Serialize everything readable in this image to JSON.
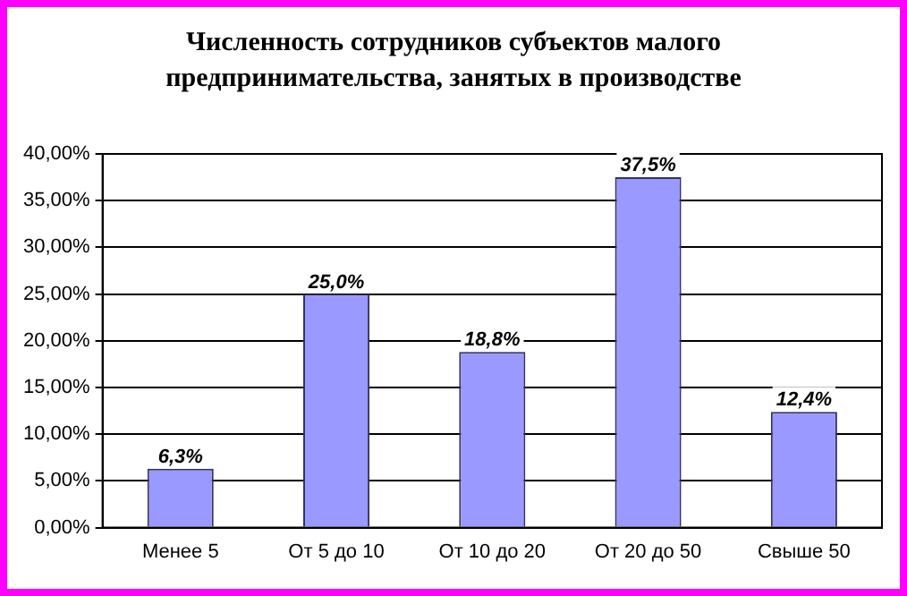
{
  "chart_data": {
    "type": "bar",
    "title": "Численность сотрудников субъектов малого предпринимательства, занятых в производстве",
    "categories": [
      "Менее 5",
      "От 5 до 10",
      "От 10 до 20",
      "От 20 до 50",
      "Свыше 50"
    ],
    "values": [
      6.3,
      25.0,
      18.8,
      37.5,
      12.4
    ],
    "value_labels": [
      "6,3%",
      "25,0%",
      "18,8%",
      "37,5%",
      "12,4%"
    ],
    "color": "#9999ff",
    "ylim": [
      0,
      40
    ],
    "yticks": [
      {
        "value": 0,
        "label": "0,00%"
      },
      {
        "value": 5,
        "label": "5,00%"
      },
      {
        "value": 10,
        "label": "10,00%"
      },
      {
        "value": 15,
        "label": "15,00%"
      },
      {
        "value": 20,
        "label": "20,00%"
      },
      {
        "value": 25,
        "label": "25,00%"
      },
      {
        "value": 30,
        "label": "30,00%"
      },
      {
        "value": 35,
        "label": "35,00%"
      },
      {
        "value": 40,
        "label": "40,00%"
      }
    ],
    "grid": "y",
    "legend": false
  }
}
